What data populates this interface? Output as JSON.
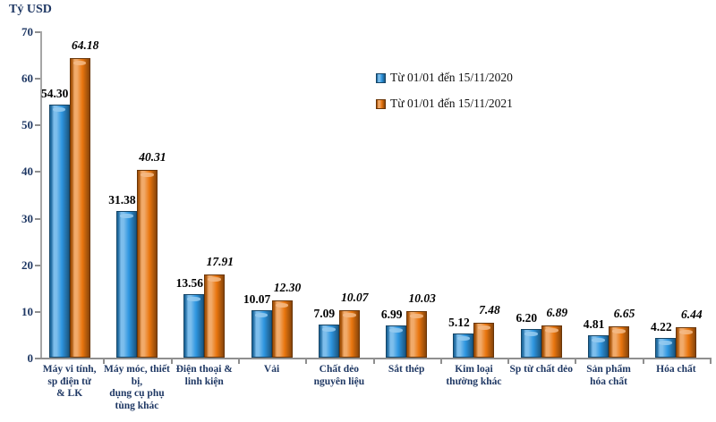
{
  "title": "Tỷ USD",
  "colors": {
    "series_2020": "#2E96E0",
    "series_2021": "#E9760F",
    "axis_line": "#8F8F8F",
    "axis_text": "#1F3864",
    "value_label_text": "#000000"
  },
  "chart_data": {
    "type": "bar",
    "title": "",
    "ylabel": "Tỷ USD",
    "xlabel": "",
    "ylim": [
      0,
      70
    ],
    "yticks": [
      0,
      10,
      20,
      30,
      40,
      50,
      60,
      70
    ],
    "grid": false,
    "legend_position": "upper-right-inside",
    "categories": [
      "Máy vi tính,\nsp điện tử\n& LK",
      "Máy móc, thiết\nbị,\ndụng cụ phụ\ntùng khác",
      "Điện thoại &\nlinh kiện",
      "Vải",
      "Chất dẻo\nnguyên liệu",
      "Sắt thép",
      "Kim loại\nthường khác",
      "Sp từ chất dẻo",
      "Sản phẩm\nhóa chất",
      "Hóa chất"
    ],
    "series": [
      {
        "name": "Từ 01/01 đến 15/11/2020",
        "color": "#2E96E0",
        "label_style": "bold",
        "values": [
          54.3,
          31.38,
          13.56,
          10.07,
          7.09,
          6.99,
          5.12,
          6.2,
          4.81,
          4.22
        ]
      },
      {
        "name": "Từ 01/01 đến 15/11/2021",
        "color": "#E9760F",
        "label_style": "bold-italic",
        "values": [
          64.18,
          40.31,
          17.91,
          12.3,
          10.07,
          10.03,
          7.48,
          6.89,
          6.65,
          6.44
        ]
      }
    ]
  }
}
